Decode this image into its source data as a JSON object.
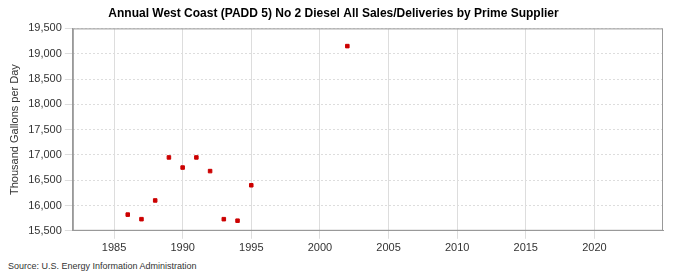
{
  "chart_data": {
    "type": "scatter",
    "title": "Annual West Coast (PADD 5) No 2 Diesel All Sales/Deliveries by Prime Supplier",
    "y_label": "Thousand Gallons per Day",
    "source": "Source: U.S. Energy Information Administration",
    "x": [
      1986,
      1987,
      1988,
      1989,
      1990,
      1991,
      1992,
      1993,
      1994,
      1995,
      2002
    ],
    "values": [
      15820,
      15730,
      16100,
      16950,
      16750,
      16950,
      16680,
      15730,
      15700,
      16400,
      19150
    ],
    "color": "#cc0000",
    "marker": "square",
    "xlim": [
      1982,
      2025
    ],
    "xticks": [
      1985,
      1990,
      1995,
      2000,
      2005,
      2010,
      2015,
      2020
    ],
    "ylim": [
      15500,
      19500
    ],
    "yticks": [
      {
        "value": 15500,
        "label": "15,500"
      },
      {
        "value": 16000,
        "label": "16,000"
      },
      {
        "value": 16500,
        "label": "16,500"
      },
      {
        "value": 17000,
        "label": "17,000"
      },
      {
        "value": 17500,
        "label": "17,500"
      },
      {
        "value": 18000,
        "label": "18,000"
      },
      {
        "value": 18500,
        "label": "18,500"
      },
      {
        "value": 19000,
        "label": "19,000"
      },
      {
        "value": 19500,
        "label": "19,500"
      }
    ],
    "grid": true
  }
}
